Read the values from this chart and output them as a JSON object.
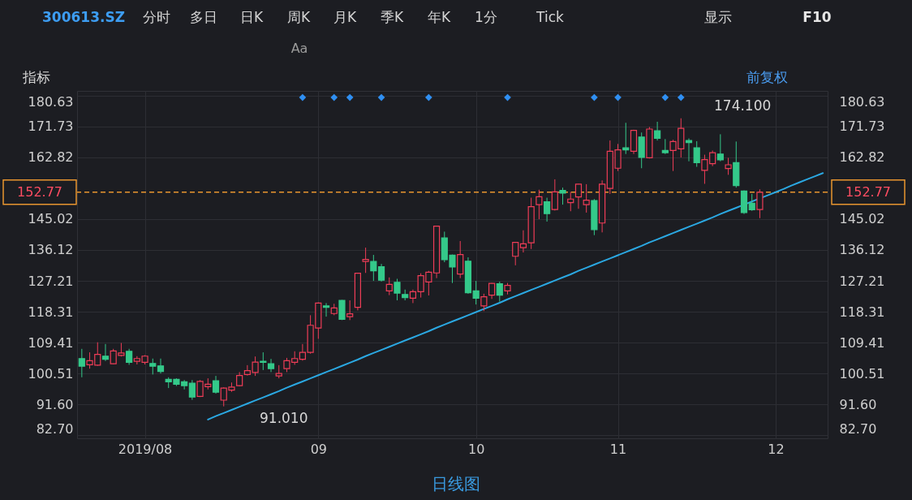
{
  "chart_data": {
    "type": "candlestick",
    "title": "300613.SZ",
    "categories": [
      null,
      null,
      null,
      null,
      null,
      null,
      null,
      null,
      "2019/08",
      null,
      null,
      null,
      null,
      null,
      null,
      null,
      null,
      null,
      null,
      null,
      null,
      null,
      null,
      null,
      null,
      null,
      null,
      null,
      null,
      null,
      "09",
      null,
      null,
      null,
      null,
      null,
      null,
      null,
      null,
      null,
      null,
      null,
      null,
      null,
      null,
      null,
      null,
      null,
      null,
      null,
      "10",
      null,
      null,
      null,
      null,
      null,
      null,
      null,
      null,
      null,
      null,
      null,
      null,
      null,
      null,
      null,
      null,
      null,
      "11",
      null,
      null,
      null,
      null,
      null,
      null,
      null,
      null,
      null,
      null,
      null,
      null,
      null,
      null,
      null,
      null,
      null,
      null,
      null,
      "12",
      null,
      null,
      null,
      null,
      null,
      null
    ],
    "ohlc": [
      [
        104.8,
        107.6,
        99.4,
        102.6
      ],
      [
        103.0,
        106.6,
        101.9,
        104.2
      ],
      [
        102.9,
        109.5,
        102.7,
        106.0
      ],
      [
        105.5,
        109.0,
        104.1,
        104.6
      ],
      [
        103.3,
        107.6,
        103.2,
        107.0
      ],
      [
        105.7,
        109.3,
        105.4,
        106.4
      ],
      [
        106.9,
        107.6,
        103.0,
        103.7
      ],
      [
        104.0,
        105.5,
        103.1,
        104.8
      ],
      [
        103.7,
        105.8,
        103.1,
        105.5
      ],
      [
        103.4,
        104.8,
        100.2,
        102.6
      ],
      [
        102.7,
        104.8,
        100.5,
        101.1
      ],
      [
        98.8,
        99.4,
        96.3,
        98.1
      ],
      [
        98.8,
        99.1,
        96.9,
        97.4
      ],
      [
        98.1,
        98.6,
        95.9,
        97.0
      ],
      [
        97.7,
        98.6,
        92.9,
        93.7
      ],
      [
        93.9,
        98.6,
        93.7,
        98.2
      ],
      [
        96.7,
        99.1,
        95.9,
        97.4
      ],
      [
        98.4,
        99.8,
        94.7,
        95.1
      ],
      [
        92.8,
        96.5,
        91.01,
        96.3
      ],
      [
        95.7,
        97.9,
        95.2,
        96.6
      ],
      [
        97.0,
        100.9,
        96.8,
        99.9
      ],
      [
        100.2,
        102.9,
        99.9,
        101.3
      ],
      [
        100.8,
        105.4,
        99.8,
        103.8
      ],
      [
        104.0,
        106.6,
        101.5,
        103.7
      ],
      [
        103.3,
        104.7,
        100.9,
        101.9
      ],
      [
        99.8,
        102.9,
        99.1,
        100.5
      ],
      [
        101.9,
        105.0,
        100.9,
        104.2
      ],
      [
        103.7,
        106.9,
        103.0,
        104.8
      ],
      [
        104.6,
        109.0,
        104.2,
        106.6
      ],
      [
        106.6,
        117.3,
        106.2,
        114.4
      ],
      [
        113.6,
        121.0,
        110.5,
        120.8
      ],
      [
        120.0,
        120.8,
        116.9,
        119.6
      ],
      [
        117.8,
        120.6,
        117.3,
        119.4
      ],
      [
        121.6,
        121.7,
        115.9,
        116.1
      ],
      [
        116.9,
        121.6,
        115.9,
        117.7
      ],
      [
        119.6,
        129.5,
        118.7,
        129.4
      ],
      [
        132.8,
        136.8,
        129.5,
        133.4
      ],
      [
        132.8,
        134.7,
        127.2,
        130.1
      ],
      [
        131.3,
        132.1,
        127.0,
        127.4
      ],
      [
        124.3,
        128.2,
        123.1,
        126.2
      ],
      [
        126.8,
        127.8,
        121.6,
        123.7
      ],
      [
        123.3,
        124.7,
        121.6,
        122.4
      ],
      [
        122.2,
        124.7,
        120.8,
        124.1
      ],
      [
        124.1,
        129.4,
        122.4,
        128.7
      ],
      [
        126.9,
        130.1,
        123.0,
        129.7
      ],
      [
        129.5,
        143.1,
        128.0,
        143.0
      ],
      [
        139.6,
        141.4,
        132.6,
        133.3
      ],
      [
        134.6,
        134.8,
        126.6,
        131.2
      ],
      [
        129.2,
        138.7,
        128.0,
        134.8
      ],
      [
        132.9,
        134.0,
        123.5,
        123.8
      ],
      [
        124.3,
        127.2,
        120.4,
        122.2
      ],
      [
        120.0,
        123.5,
        118.5,
        122.6
      ],
      [
        123.1,
        126.6,
        122.0,
        126.5
      ],
      [
        126.4,
        127.0,
        121.2,
        123.1
      ],
      [
        124.3,
        126.6,
        123.3,
        125.9
      ],
      [
        134.3,
        138.4,
        131.7,
        138.3
      ],
      [
        136.8,
        141.8,
        135.4,
        137.9
      ],
      [
        138.2,
        151.2,
        136.4,
        148.6
      ],
      [
        149.2,
        153.5,
        145.0,
        151.5
      ],
      [
        150.0,
        151.2,
        144.3,
        146.6
      ],
      [
        147.8,
        156.5,
        147.5,
        152.9
      ],
      [
        153.3,
        154.1,
        149.2,
        152.5
      ],
      [
        149.8,
        152.9,
        147.3,
        150.8
      ],
      [
        151.4,
        155.2,
        148.0,
        155.1
      ],
      [
        149.2,
        155.1,
        146.9,
        150.5
      ],
      [
        150.4,
        150.8,
        140.4,
        142.0
      ],
      [
        143.9,
        156.2,
        141.2,
        155.1
      ],
      [
        153.9,
        167.7,
        152.3,
        164.6
      ],
      [
        159.7,
        166.7,
        158.9,
        165.0
      ],
      [
        165.6,
        172.8,
        163.8,
        165.0
      ],
      [
        164.6,
        170.8,
        163.8,
        170.6
      ],
      [
        168.7,
        170.0,
        159.7,
        162.8
      ],
      [
        162.7,
        171.6,
        162.5,
        171.0
      ],
      [
        170.5,
        173.1,
        167.7,
        168.3
      ],
      [
        164.8,
        168.1,
        163.8,
        164.2
      ],
      [
        164.8,
        167.9,
        158.9,
        167.4
      ],
      [
        165.3,
        174.1,
        162.8,
        171.2
      ],
      [
        167.7,
        168.3,
        161.7,
        167.1
      ],
      [
        165.6,
        167.5,
        160.1,
        161.3
      ],
      [
        159.1,
        163.6,
        155.2,
        162.2
      ],
      [
        161.0,
        164.8,
        160.3,
        164.2
      ],
      [
        163.8,
        169.5,
        161.7,
        162.1
      ],
      [
        159.6,
        162.7,
        157.8,
        160.7
      ],
      [
        161.3,
        167.4,
        154.1,
        154.7
      ],
      [
        153.1,
        153.3,
        146.5,
        146.9
      ],
      [
        149.6,
        152.3,
        147.4,
        147.7
      ],
      [
        147.8,
        153.6,
        145.3,
        152.77
      ],
      null,
      null,
      null,
      null,
      null,
      null,
      null,
      null
    ],
    "colors": [
      "#34c98a",
      "#ee3d57",
      "#ee3d57",
      "#34c98a",
      "#ee3d57",
      "#ee3d57",
      "#34c98a",
      "#ee3d57",
      "#ee3d57",
      "#34c98a",
      "#34c98a",
      "#34c98a",
      "#34c98a",
      "#34c98a",
      "#34c98a",
      "#ee3d57",
      "#ee3d57",
      "#34c98a",
      "#ee3d57",
      "#ee3d57",
      "#ee3d57",
      "#ee3d57",
      "#ee3d57",
      "#34c98a",
      "#34c98a",
      "#ee3d57",
      "#ee3d57",
      "#ee3d57",
      "#ee3d57",
      "#ee3d57",
      "#ee3d57",
      "#34c98a",
      "#ee3d57",
      "#34c98a",
      "#ee3d57",
      "#ee3d57",
      "#ee3d57",
      "#34c98a",
      "#34c98a",
      "#ee3d57",
      "#34c98a",
      "#34c98a",
      "#ee3d57",
      "#ee3d57",
      "#ee3d57",
      "#ee3d57",
      "#34c98a",
      "#34c98a",
      "#ee3d57",
      "#34c98a",
      "#34c98a",
      "#ee3d57",
      "#ee3d57",
      "#34c98a",
      "#ee3d57",
      "#ee3d57",
      "#ee3d57",
      "#ee3d57",
      "#ee3d57",
      "#34c98a",
      "#ee3d57",
      "#34c98a",
      "#ee3d57",
      "#ee3d57",
      "#ee3d57",
      "#34c98a",
      "#ee3d57",
      "#ee3d57",
      "#ee3d57",
      "#34c98a",
      "#ee3d57",
      "#34c98a",
      "#ee3d57",
      "#34c98a",
      "#34c98a",
      "#ee3d57",
      "#ee3d57",
      "#34c98a",
      "#34c98a",
      "#ee3d57",
      "#ee3d57",
      "#34c98a",
      "#ee3d57",
      "#34c98a",
      "#34c98a",
      "#34c98a",
      "#ee3d57",
      null,
      null,
      null,
      null,
      null,
      null,
      null,
      null
    ],
    "series": [
      {
        "type": "line",
        "color": "#2ba8e2",
        "values": [
          null,
          null,
          null,
          null,
          null,
          null,
          null,
          null,
          null,
          null,
          null,
          null,
          null,
          null,
          null,
          null,
          87.2,
          88.2,
          89.1,
          90.0,
          90.9,
          91.8,
          92.7,
          93.6,
          94.5,
          95.4,
          96.4,
          97.3,
          98.2,
          99.1,
          100.0,
          100.9,
          101.8,
          102.7,
          103.6,
          104.5,
          105.5,
          106.4,
          107.3,
          108.2,
          109.1,
          110.0,
          110.9,
          111.8,
          112.7,
          113.7,
          114.6,
          115.5,
          116.4,
          117.3,
          118.2,
          119.1,
          120.0,
          120.9,
          121.9,
          122.8,
          123.7,
          124.6,
          125.5,
          126.4,
          127.3,
          128.2,
          129.1,
          130.1,
          131.0,
          131.9,
          132.8,
          133.7,
          134.6,
          135.5,
          136.4,
          137.3,
          138.3,
          139.2,
          140.1,
          141.0,
          141.9,
          142.8,
          143.7,
          144.6,
          145.5,
          146.5,
          147.4,
          148.3,
          149.2,
          150.1,
          151.0,
          151.9,
          152.8,
          153.7,
          154.7,
          155.6,
          156.5,
          157.4,
          158.3
        ]
      },
      {
        "type": "scatter",
        "marker": "diamond",
        "color": "#2f8ff2",
        "values": [
          null,
          null,
          null,
          null,
          null,
          null,
          null,
          null,
          null,
          null,
          null,
          null,
          null,
          null,
          null,
          null,
          null,
          null,
          null,
          null,
          null,
          null,
          null,
          null,
          null,
          null,
          null,
          null,
          180.1,
          null,
          null,
          null,
          180.1,
          null,
          180.1,
          null,
          null,
          null,
          180.1,
          null,
          null,
          null,
          null,
          null,
          180.1,
          null,
          null,
          null,
          null,
          null,
          null,
          null,
          null,
          null,
          180.1,
          null,
          null,
          null,
          null,
          null,
          null,
          null,
          null,
          null,
          null,
          180.1,
          null,
          null,
          180.1,
          null,
          null,
          null,
          null,
          null,
          180.1,
          null,
          180.1,
          null,
          null,
          null,
          null,
          null,
          null,
          null,
          null,
          null,
          null,
          null,
          null,
          null,
          null,
          null,
          null,
          null,
          null
        ]
      }
    ],
    "ylim": [
      81.8,
      182.0
    ],
    "yticks": [
      {
        "value": 82.7,
        "label": "82.70"
      },
      {
        "value": 91.6,
        "label": "91.60"
      },
      100.51,
      109.41,
      118.31,
      127.21,
      136.12,
      145.02,
      162.82,
      171.73,
      180.63
    ],
    "y2lim": [
      81.8,
      182.0
    ],
    "y2ticks": [
      {
        "value": 82.7,
        "label": "82.70"
      },
      {
        "value": 91.6,
        "label": "91.60"
      },
      100.51,
      109.41,
      118.31,
      127.21,
      136.12,
      145.02,
      162.82,
      171.73,
      180.63
    ],
    "grid": true,
    "ref_lines": [
      {
        "axis": "y",
        "value": 152.77,
        "label": "152.77",
        "color": "#e8952f",
        "line_style": "dashed"
      }
    ],
    "annotations": [
      "174.100",
      "91.010",
      "分时",
      "多日",
      "日K",
      "周K",
      "月K",
      "季K",
      "年K",
      "1分",
      "Tick",
      "显示",
      "F10",
      "Aa",
      "指标",
      "前复权",
      "日线图"
    ]
  }
}
